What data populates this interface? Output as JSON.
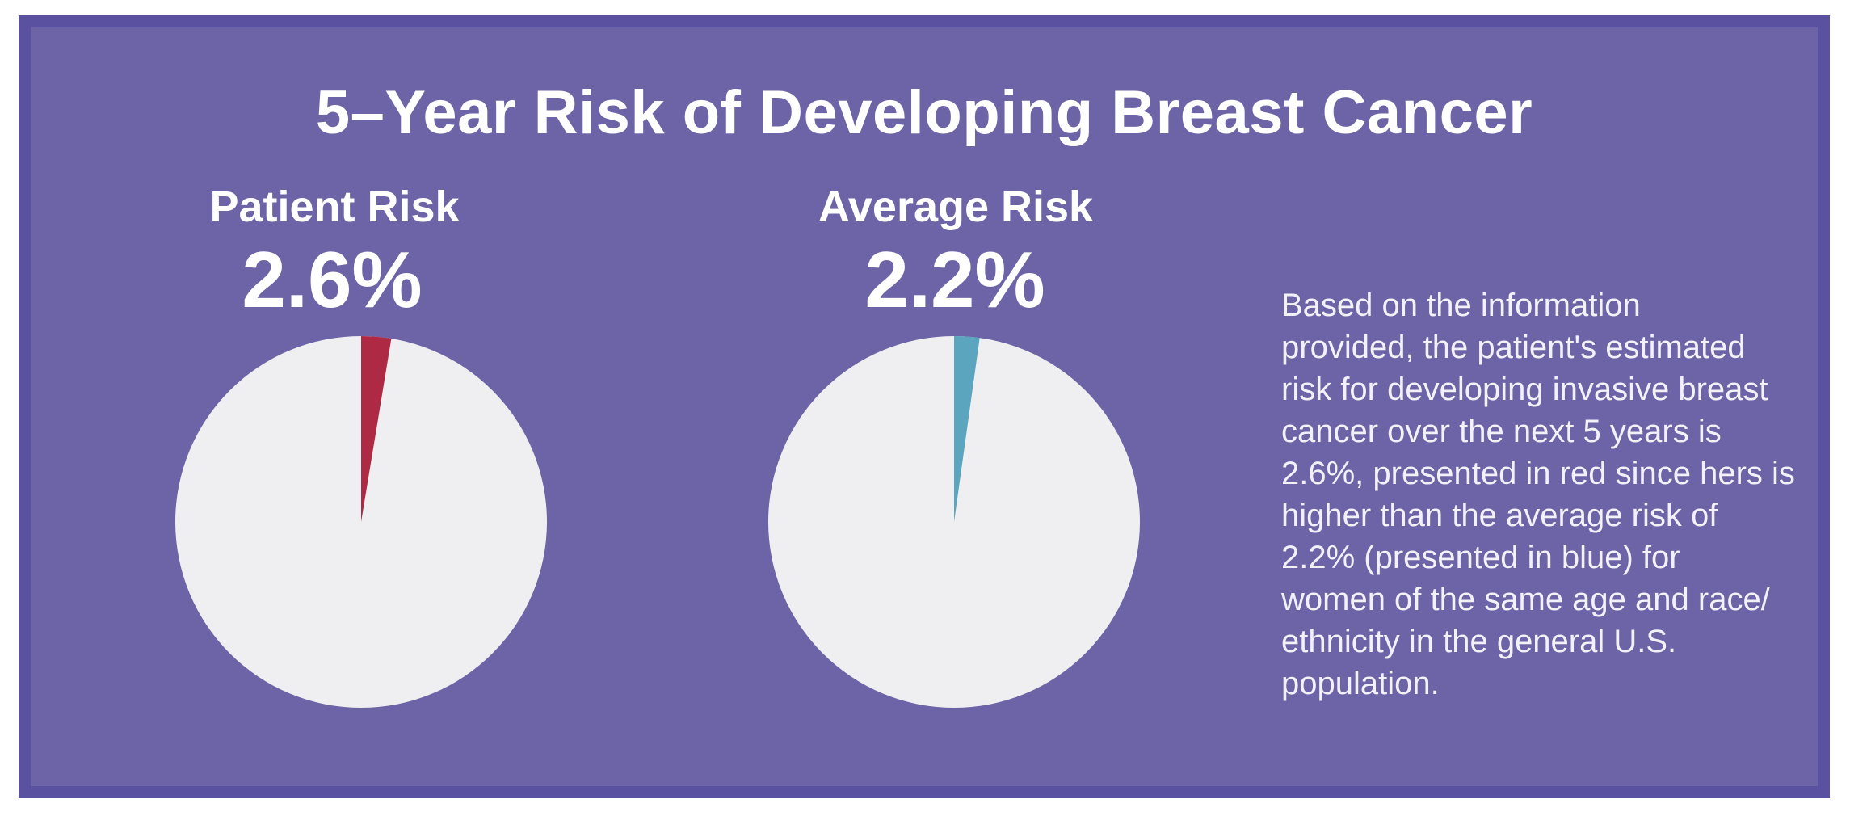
{
  "header": {
    "title": "5–Year Risk of Developing Breast Cancer"
  },
  "chart_data": [
    {
      "type": "pie",
      "title": "Patient Risk",
      "value_label": "2.6%",
      "slices": [
        {
          "label": "Patient 5-year breast cancer risk",
          "value": 2.6,
          "color": "#ae2a44"
        },
        {
          "label": "Remainder",
          "value": 97.4,
          "color": "#efeef0"
        }
      ],
      "start_angle_deg": 0,
      "direction": "clockwise",
      "legend": false
    },
    {
      "type": "pie",
      "title": "Average Risk",
      "value_label": "2.2%",
      "slices": [
        {
          "label": "Average 5-year breast cancer risk",
          "value": 2.2,
          "color": "#5ba6be"
        },
        {
          "label": "Remainder",
          "value": 97.8,
          "color": "#efeef0"
        }
      ],
      "start_angle_deg": 0,
      "direction": "clockwise",
      "legend": false
    }
  ],
  "annotation": {
    "text": "Based on the information\nprovided, the patient's estimated\nrisk for developing invasive breast\ncancer over the next 5 years is\n2.6%, presented in red since hers is\nhigher than the average risk of\n2.2% (presented in blue) for\nwomen of the same age and race/\nethnicity in the general U.S.\npopulation."
  },
  "colors": {
    "page_margin": "#ffffff",
    "card_background": "#6c64a6",
    "card_border": "#5a51a0",
    "pie_remainder": "#efeef0",
    "patient_slice_red": "#ae2a44",
    "average_slice_blue": "#5ba6be",
    "title_text": "#ffffff",
    "annotation_text": "#f3f1f7"
  }
}
